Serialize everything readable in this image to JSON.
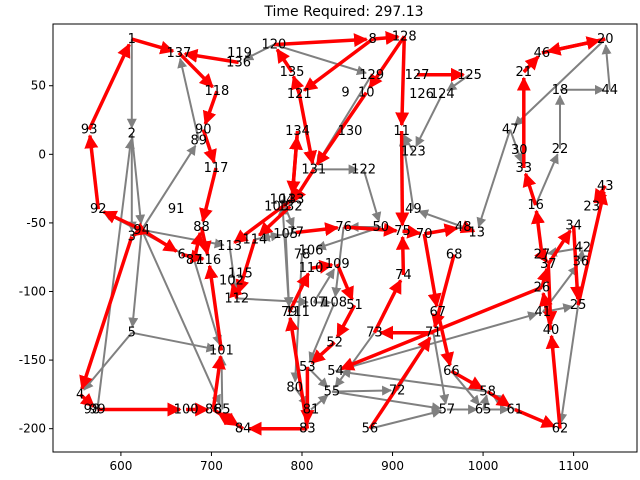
{
  "chart_data": {
    "type": "network",
    "title": "Time Required: 297.13",
    "xlim": [
      525,
      1170
    ],
    "ylim": [
      -217,
      95
    ],
    "x_ticks": [
      600,
      700,
      800,
      900,
      1000,
      1100
    ],
    "y_ticks": [
      50,
      0,
      -50,
      -100,
      -150,
      -200
    ],
    "colors": {
      "route": "#ff0000",
      "road": "#808080"
    },
    "nodes": [
      {
        "id": "1",
        "x": 612,
        "y": 84
      },
      {
        "id": "2",
        "x": 612,
        "y": 15
      },
      {
        "id": "3",
        "x": 612,
        "y": -60
      },
      {
        "id": "4",
        "x": 555,
        "y": -175
      },
      {
        "id": "5",
        "x": 612,
        "y": -130
      },
      {
        "id": "6",
        "x": 667,
        "y": -73
      },
      {
        "id": "8",
        "x": 878,
        "y": 84
      },
      {
        "id": "9",
        "x": 848,
        "y": 45
      },
      {
        "id": "10",
        "x": 871,
        "y": 45
      },
      {
        "id": "11",
        "x": 910,
        "y": 17
      },
      {
        "id": "13",
        "x": 993,
        "y": -57
      },
      {
        "id": "16",
        "x": 1058,
        "y": -37
      },
      {
        "id": "18",
        "x": 1085,
        "y": 47
      },
      {
        "id": "20",
        "x": 1135,
        "y": 84
      },
      {
        "id": "21",
        "x": 1045,
        "y": 60
      },
      {
        "id": "22",
        "x": 1085,
        "y": 4
      },
      {
        "id": "23",
        "x": 1120,
        "y": -38
      },
      {
        "id": "25",
        "x": 1105,
        "y": -110
      },
      {
        "id": "26",
        "x": 1065,
        "y": -97
      },
      {
        "id": "27",
        "x": 1065,
        "y": -73
      },
      {
        "id": "30",
        "x": 1040,
        "y": 3
      },
      {
        "id": "33",
        "x": 1045,
        "y": -10
      },
      {
        "id": "34",
        "x": 1100,
        "y": -52
      },
      {
        "id": "36",
        "x": 1108,
        "y": -78
      },
      {
        "id": "37",
        "x": 1072,
        "y": -80
      },
      {
        "id": "40",
        "x": 1075,
        "y": -128
      },
      {
        "id": "41",
        "x": 1066,
        "y": -115
      },
      {
        "id": "42",
        "x": 1110,
        "y": -68
      },
      {
        "id": "43",
        "x": 1135,
        "y": -23
      },
      {
        "id": "44",
        "x": 1140,
        "y": 47
      },
      {
        "id": "46",
        "x": 1065,
        "y": 74
      },
      {
        "id": "47",
        "x": 1030,
        "y": 18
      },
      {
        "id": "48",
        "x": 978,
        "y": -53
      },
      {
        "id": "49",
        "x": 923,
        "y": -40
      },
      {
        "id": "50",
        "x": 887,
        "y": -53
      },
      {
        "id": "51",
        "x": 858,
        "y": -110
      },
      {
        "id": "52",
        "x": 836,
        "y": -137
      },
      {
        "id": "53",
        "x": 806,
        "y": -155
      },
      {
        "id": "54",
        "x": 837,
        "y": -158
      },
      {
        "id": "55",
        "x": 833,
        "y": -173
      },
      {
        "id": "56",
        "x": 875,
        "y": -200
      },
      {
        "id": "57",
        "x": 960,
        "y": -186
      },
      {
        "id": "58",
        "x": 1005,
        "y": -173
      },
      {
        "id": "61",
        "x": 1035,
        "y": -186
      },
      {
        "id": "62",
        "x": 1085,
        "y": -200
      },
      {
        "id": "65",
        "x": 1000,
        "y": -186
      },
      {
        "id": "66",
        "x": 965,
        "y": -158
      },
      {
        "id": "67",
        "x": 950,
        "y": -115
      },
      {
        "id": "68",
        "x": 968,
        "y": -73
      },
      {
        "id": "70",
        "x": 935,
        "y": -58
      },
      {
        "id": "71",
        "x": 945,
        "y": -130
      },
      {
        "id": "72",
        "x": 905,
        "y": -172
      },
      {
        "id": "73",
        "x": 880,
        "y": -130
      },
      {
        "id": "74",
        "x": 912,
        "y": -88
      },
      {
        "id": "75",
        "x": 911,
        "y": -56
      },
      {
        "id": "76",
        "x": 846,
        "y": -53
      },
      {
        "id": "77",
        "x": 793,
        "y": -57
      },
      {
        "id": "78",
        "x": 800,
        "y": -73
      },
      {
        "id": "79",
        "x": 786,
        "y": -115
      },
      {
        "id": "80",
        "x": 792,
        "y": -170
      },
      {
        "id": "81",
        "x": 810,
        "y": -186
      },
      {
        "id": "83",
        "x": 806,
        "y": -200
      },
      {
        "id": "84",
        "x": 735,
        "y": -200
      },
      {
        "id": "85",
        "x": 712,
        "y": -186
      },
      {
        "id": "86",
        "x": 702,
        "y": -186
      },
      {
        "id": "87",
        "x": 681,
        "y": -77
      },
      {
        "id": "88",
        "x": 689,
        "y": -53
      },
      {
        "id": "89",
        "x": 686,
        "y": 10
      },
      {
        "id": "90",
        "x": 691,
        "y": 18
      },
      {
        "id": "91",
        "x": 661,
        "y": -40
      },
      {
        "id": "92",
        "x": 575,
        "y": -40
      },
      {
        "id": "93",
        "x": 565,
        "y": 18
      },
      {
        "id": "94",
        "x": 623,
        "y": -55
      },
      {
        "id": "98",
        "x": 568,
        "y": -186
      },
      {
        "id": "99",
        "x": 574,
        "y": -186
      },
      {
        "id": "100",
        "x": 672,
        "y": -186
      },
      {
        "id": "101",
        "x": 711,
        "y": -143
      },
      {
        "id": "102",
        "x": 722,
        "y": -92
      },
      {
        "id": "103",
        "x": 772,
        "y": -38
      },
      {
        "id": "104",
        "x": 778,
        "y": -33
      },
      {
        "id": "105",
        "x": 782,
        "y": -58
      },
      {
        "id": "106",
        "x": 810,
        "y": -70
      },
      {
        "id": "107",
        "x": 813,
        "y": -108
      },
      {
        "id": "108",
        "x": 836,
        "y": -108
      },
      {
        "id": "109",
        "x": 839,
        "y": -80
      },
      {
        "id": "110",
        "x": 810,
        "y": -83
      },
      {
        "id": "111",
        "x": 795,
        "y": -115
      },
      {
        "id": "112",
        "x": 728,
        "y": -105
      },
      {
        "id": "113",
        "x": 720,
        "y": -67
      },
      {
        "id": "114",
        "x": 748,
        "y": -62
      },
      {
        "id": "115",
        "x": 732,
        "y": -87
      },
      {
        "id": "116",
        "x": 697,
        "y": -77
      },
      {
        "id": "117",
        "x": 705,
        "y": -10
      },
      {
        "id": "118",
        "x": 706,
        "y": 46
      },
      {
        "id": "119",
        "x": 731,
        "y": 74
      },
      {
        "id": "120",
        "x": 769,
        "y": 80
      },
      {
        "id": "121",
        "x": 797,
        "y": 44
      },
      {
        "id": "122",
        "x": 868,
        "y": -11
      },
      {
        "id": "123",
        "x": 923,
        "y": 2
      },
      {
        "id": "124",
        "x": 955,
        "y": 44
      },
      {
        "id": "125",
        "x": 985,
        "y": 58
      },
      {
        "id": "126",
        "x": 932,
        "y": 44
      },
      {
        "id": "127",
        "x": 927,
        "y": 58
      },
      {
        "id": "128",
        "x": 913,
        "y": 86
      },
      {
        "id": "129",
        "x": 877,
        "y": 58
      },
      {
        "id": "130",
        "x": 853,
        "y": 17
      },
      {
        "id": "131",
        "x": 813,
        "y": -11
      },
      {
        "id": "132",
        "x": 787,
        "y": -38
      },
      {
        "id": "133",
        "x": 789,
        "y": -33
      },
      {
        "id": "134",
        "x": 795,
        "y": 17
      },
      {
        "id": "135",
        "x": 789,
        "y": 60
      },
      {
        "id": "136",
        "x": 730,
        "y": 67
      },
      {
        "id": "137",
        "x": 664,
        "y": 74
      }
    ],
    "route_edges": [
      [
        "93",
        "1"
      ],
      [
        "1",
        "137"
      ],
      [
        "137",
        "118"
      ],
      [
        "118",
        "90"
      ],
      [
        "90",
        "117"
      ],
      [
        "117",
        "88"
      ],
      [
        "88",
        "116"
      ],
      [
        "94",
        "3"
      ],
      [
        "3",
        "4"
      ],
      [
        "4",
        "99"
      ],
      [
        "99",
        "100"
      ],
      [
        "100",
        "86"
      ],
      [
        "86",
        "101"
      ],
      [
        "101",
        "116"
      ],
      [
        "94",
        "6"
      ],
      [
        "6",
        "116"
      ],
      [
        "8",
        "121"
      ],
      [
        "121",
        "131"
      ],
      [
        "131",
        "132"
      ],
      [
        "132",
        "114"
      ],
      [
        "114",
        "112"
      ],
      [
        "112",
        "102"
      ],
      [
        "120",
        "8"
      ],
      [
        "8",
        "128"
      ],
      [
        "128",
        "10"
      ],
      [
        "10",
        "131"
      ],
      [
        "128",
        "11"
      ],
      [
        "11",
        "75"
      ],
      [
        "75",
        "70"
      ],
      [
        "70",
        "67"
      ],
      [
        "67",
        "66"
      ],
      [
        "66",
        "58"
      ],
      [
        "58",
        "61"
      ],
      [
        "61",
        "62"
      ],
      [
        "62",
        "40"
      ],
      [
        "40",
        "26"
      ],
      [
        "26",
        "54"
      ],
      [
        "26",
        "37"
      ],
      [
        "37",
        "34"
      ],
      [
        "34",
        "25"
      ],
      [
        "25",
        "43"
      ],
      [
        "43",
        "23"
      ],
      [
        "27",
        "16"
      ],
      [
        "16",
        "33"
      ],
      [
        "33",
        "21"
      ],
      [
        "21",
        "46"
      ],
      [
        "46",
        "20"
      ],
      [
        "20",
        "46"
      ],
      [
        "127",
        "125"
      ],
      [
        "125",
        "32"
      ],
      [
        "32",
        "30"
      ],
      [
        "30",
        "14"
      ],
      [
        "14",
        "68"
      ],
      [
        "68",
        "71"
      ],
      [
        "71",
        "73"
      ],
      [
        "73",
        "74"
      ],
      [
        "74",
        "75"
      ],
      [
        "83",
        "84"
      ],
      [
        "84",
        "86"
      ],
      [
        "83",
        "79"
      ],
      [
        "79",
        "110"
      ],
      [
        "110",
        "109"
      ],
      [
        "109",
        "51"
      ],
      [
        "51",
        "52"
      ],
      [
        "52",
        "53"
      ],
      [
        "53",
        "83"
      ],
      [
        "136",
        "137"
      ],
      [
        "135",
        "120"
      ],
      [
        "121",
        "135"
      ],
      [
        "94",
        "92"
      ],
      [
        "92",
        "93"
      ],
      [
        "70",
        "48"
      ],
      [
        "48",
        "13"
      ],
      [
        "13",
        "14"
      ],
      [
        "14",
        "27"
      ],
      [
        "27",
        "37"
      ],
      [
        "37",
        "40"
      ],
      [
        "134",
        "133"
      ],
      [
        "133",
        "113"
      ],
      [
        "77",
        "76"
      ],
      [
        "76",
        "75"
      ],
      [
        "133",
        "134"
      ],
      [
        "87",
        "88"
      ],
      [
        "86",
        "84"
      ],
      [
        "56",
        "71"
      ]
    ],
    "road_edges": [
      [
        "1",
        "2"
      ],
      [
        "2",
        "94"
      ],
      [
        "94",
        "5"
      ],
      [
        "5",
        "4"
      ],
      [
        "94",
        "85"
      ],
      [
        "94",
        "89"
      ],
      [
        "89",
        "137"
      ],
      [
        "120",
        "136"
      ],
      [
        "120",
        "129"
      ],
      [
        "129",
        "131"
      ],
      [
        "131",
        "122"
      ],
      [
        "122",
        "50"
      ],
      [
        "50",
        "76"
      ],
      [
        "76",
        "108"
      ],
      [
        "108",
        "53"
      ],
      [
        "53",
        "55"
      ],
      [
        "55",
        "72"
      ],
      [
        "72",
        "71"
      ],
      [
        "71",
        "57"
      ],
      [
        "57",
        "65"
      ],
      [
        "65",
        "61"
      ],
      [
        "61",
        "58"
      ],
      [
        "58",
        "54"
      ],
      [
        "54",
        "41"
      ],
      [
        "41",
        "25"
      ],
      [
        "25",
        "62"
      ],
      [
        "62",
        "38"
      ],
      [
        "38",
        "41"
      ],
      [
        "41",
        "36"
      ],
      [
        "36",
        "42"
      ],
      [
        "42",
        "27"
      ],
      [
        "42",
        "35"
      ],
      [
        "35",
        "25"
      ],
      [
        "35",
        "16"
      ],
      [
        "16",
        "22"
      ],
      [
        "22",
        "18"
      ],
      [
        "18",
        "31"
      ],
      [
        "31",
        "47"
      ],
      [
        "47",
        "13"
      ],
      [
        "47",
        "33"
      ],
      [
        "18",
        "44"
      ],
      [
        "44",
        "20"
      ],
      [
        "20",
        "47"
      ],
      [
        "125",
        "124"
      ],
      [
        "124",
        "123"
      ],
      [
        "123",
        "11"
      ],
      [
        "12",
        "48"
      ],
      [
        "48",
        "49"
      ],
      [
        "49",
        "11"
      ],
      [
        "77",
        "114"
      ],
      [
        "114",
        "105"
      ],
      [
        "105",
        "79"
      ],
      [
        "79",
        "104"
      ],
      [
        "104",
        "77"
      ],
      [
        "99",
        "2"
      ],
      [
        "2",
        "3"
      ],
      [
        "5",
        "101"
      ],
      [
        "85",
        "101"
      ],
      [
        "87",
        "101"
      ],
      [
        "87",
        "92"
      ],
      [
        "94",
        "113"
      ],
      [
        "113",
        "112"
      ],
      [
        "112",
        "107"
      ],
      [
        "107",
        "108"
      ],
      [
        "107",
        "109"
      ],
      [
        "78",
        "80"
      ],
      [
        "80",
        "81"
      ],
      [
        "81",
        "55"
      ],
      [
        "55",
        "57"
      ],
      [
        "56",
        "57"
      ],
      [
        "66",
        "65"
      ],
      [
        "65",
        "58"
      ],
      [
        "73",
        "55"
      ],
      [
        "50",
        "106"
      ]
    ]
  }
}
